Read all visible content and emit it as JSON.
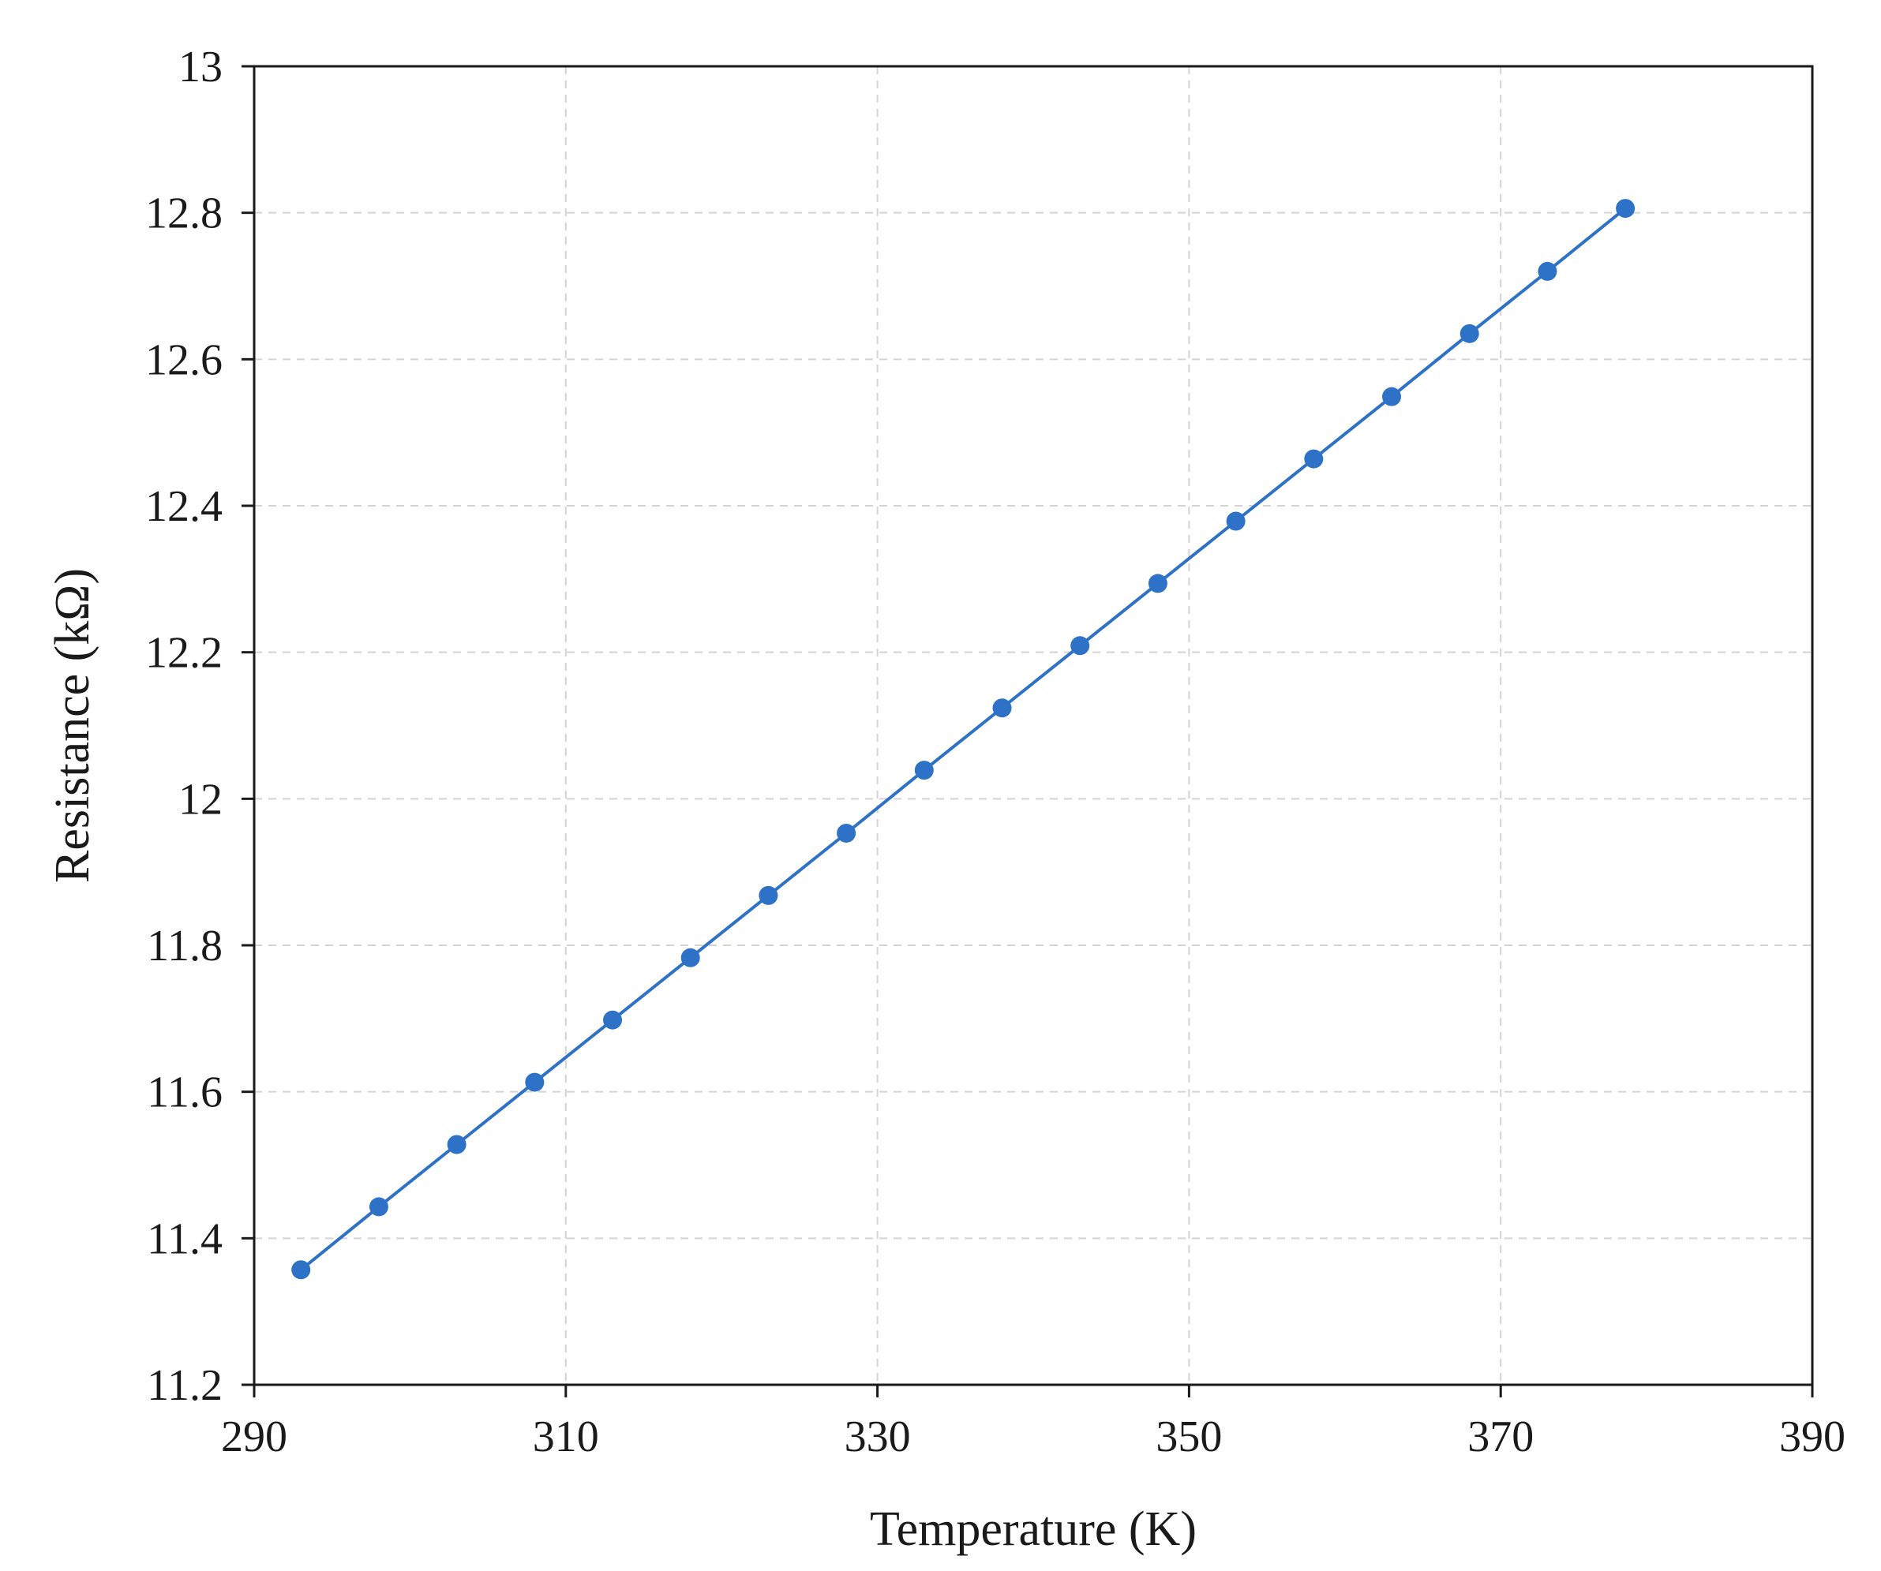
{
  "chart_data": {
    "type": "line",
    "title": "",
    "xlabel": "Temperature (K)",
    "ylabel": "Resistance (kΩ)",
    "xlim": [
      290,
      390
    ],
    "ylim": [
      11.2,
      13
    ],
    "x_ticks": [
      "290",
      "310",
      "330",
      "350",
      "370",
      "390"
    ],
    "y_ticks": [
      "11.2",
      "11.4",
      "11.6",
      "11.8",
      "12",
      "12.2",
      "12.4",
      "12.6",
      "12.8",
      "13"
    ],
    "grid": true,
    "marker_color": "#2e72c8",
    "series": [
      {
        "x": [
          293,
          298,
          303,
          308,
          313,
          318,
          323,
          328,
          333,
          338,
          343,
          348,
          353,
          358,
          363,
          368,
          373,
          378
        ],
        "y": [
          11.357,
          11.443,
          11.528,
          11.613,
          11.698,
          11.783,
          11.868,
          11.953,
          12.039,
          12.124,
          12.209,
          12.294,
          12.379,
          12.464,
          12.549,
          12.635,
          12.72,
          12.806
        ]
      }
    ]
  }
}
